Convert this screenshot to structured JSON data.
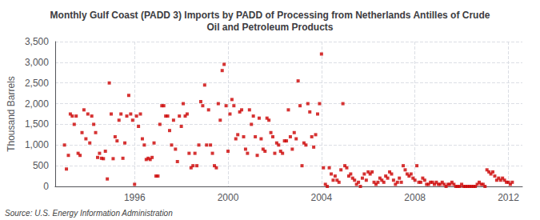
{
  "chart_data": {
    "type": "scatter",
    "title": "Monthly Gulf Coast (PADD 3) Imports by PADD of Processing from Netherlands Antilles of Crude\nOil and Petroleum Products",
    "ylabel": "Thousand Barrels",
    "annotation": "Source: U.S. Energy Information Administration",
    "color": "#cc0000",
    "marker": "square",
    "grid": true,
    "xlim": [
      1992.6,
      2012.6
    ],
    "ylim": [
      0,
      3500
    ],
    "xticks": [
      1996,
      2000,
      2004,
      2008,
      2012
    ],
    "yticks": [
      0,
      500,
      {
        "value": 1000,
        "label": "1,000"
      },
      {
        "value": 1500,
        "label": "1,500"
      },
      {
        "value": 2000,
        "label": "2,000"
      },
      {
        "value": 2500,
        "label": "2,500"
      },
      {
        "value": 3000,
        "label": "3,000"
      },
      {
        "value": 3500,
        "label": "3,500"
      }
    ],
    "x": [
      1993.0,
      1993.083,
      1993.167,
      1993.25,
      1993.333,
      1993.417,
      1993.5,
      1993.583,
      1993.667,
      1993.75,
      1993.833,
      1993.917,
      1994.0,
      1994.083,
      1994.167,
      1994.25,
      1994.333,
      1994.417,
      1994.5,
      1994.583,
      1994.667,
      1994.75,
      1994.833,
      1994.917,
      1995.0,
      1995.083,
      1995.167,
      1995.25,
      1995.333,
      1995.417,
      1995.5,
      1995.583,
      1995.667,
      1995.75,
      1995.833,
      1995.917,
      1996.0,
      1996.083,
      1996.167,
      1996.25,
      1996.333,
      1996.417,
      1996.5,
      1996.583,
      1996.667,
      1996.75,
      1996.833,
      1996.917,
      1997.0,
      1997.083,
      1997.167,
      1997.25,
      1997.333,
      1997.417,
      1997.5,
      1997.583,
      1997.667,
      1997.75,
      1997.833,
      1997.917,
      1998.0,
      1998.083,
      1998.167,
      1998.25,
      1998.333,
      1998.417,
      1998.5,
      1998.583,
      1998.667,
      1998.75,
      1998.833,
      1998.917,
      1999.0,
      1999.083,
      1999.167,
      1999.25,
      1999.333,
      1999.417,
      1999.5,
      1999.583,
      1999.667,
      1999.75,
      1999.833,
      1999.917,
      2000.0,
      2000.083,
      2000.167,
      2000.25,
      2000.333,
      2000.417,
      2000.5,
      2000.583,
      2000.667,
      2000.75,
      2000.833,
      2000.917,
      2001.0,
      2001.083,
      2001.167,
      2001.25,
      2001.333,
      2001.417,
      2001.5,
      2001.583,
      2001.667,
      2001.75,
      2001.833,
      2001.917,
      2002.0,
      2002.083,
      2002.167,
      2002.25,
      2002.333,
      2002.417,
      2002.5,
      2002.583,
      2002.667,
      2002.75,
      2002.833,
      2002.917,
      2003.0,
      2003.083,
      2003.167,
      2003.25,
      2003.333,
      2003.417,
      2003.5,
      2003.583,
      2003.667,
      2003.75,
      2003.833,
      2003.917,
      2004.0,
      2004.083,
      2004.167,
      2004.25,
      2004.333,
      2004.417,
      2004.5,
      2004.583,
      2004.667,
      2004.75,
      2004.833,
      2004.917,
      2005.0,
      2005.083,
      2005.167,
      2005.25,
      2005.333,
      2005.417,
      2005.5,
      2005.583,
      2005.667,
      2005.75,
      2005.833,
      2005.917,
      2006.0,
      2006.083,
      2006.167,
      2006.25,
      2006.333,
      2006.417,
      2006.5,
      2006.583,
      2006.667,
      2006.75,
      2006.833,
      2006.917,
      2007.0,
      2007.083,
      2007.167,
      2007.25,
      2007.333,
      2007.417,
      2007.5,
      2007.583,
      2007.667,
      2007.75,
      2007.833,
      2007.917,
      2008.0,
      2008.083,
      2008.167,
      2008.25,
      2008.333,
      2008.417,
      2008.5,
      2008.583,
      2008.667,
      2008.75,
      2008.833,
      2008.917,
      2009.0,
      2009.083,
      2009.167,
      2009.25,
      2009.333,
      2009.417,
      2009.5,
      2009.583,
      2009.667,
      2009.75,
      2009.833,
      2009.917,
      2010.0,
      2010.083,
      2010.167,
      2010.25,
      2010.333,
      2010.417,
      2010.5,
      2010.583,
      2010.667,
      2010.75,
      2010.833,
      2010.917,
      2011.0,
      2011.083,
      2011.167,
      2011.25,
      2011.333,
      2011.417,
      2011.5,
      2011.583,
      2011.667,
      2011.75,
      2011.833,
      2011.917,
      2012.0,
      2012.083,
      2012.167
    ],
    "values": [
      1000,
      420,
      750,
      1750,
      1700,
      1500,
      1700,
      800,
      750,
      1300,
      1850,
      1150,
      1750,
      1050,
      1700,
      1500,
      1300,
      700,
      800,
      680,
      670,
      850,
      180,
      2500,
      1750,
      670,
      1200,
      1100,
      1600,
      1750,
      680,
      1050,
      1700,
      2200,
      1750,
      1600,
      50,
      1700,
      1450,
      1750,
      1150,
      1000,
      650,
      680,
      650,
      700,
      1050,
      250,
      250,
      1500,
      1950,
      1950,
      1700,
      1700,
      1350,
      1000,
      1600,
      900,
      600,
      1700,
      1450,
      2000,
      1700,
      1750,
      800,
      450,
      500,
      800,
      500,
      1000,
      2050,
      1950,
      2450,
      1000,
      1850,
      1000,
      800,
      500,
      450,
      2000,
      1600,
      2800,
      2950,
      1950,
      850,
      1750,
      2100,
      1950,
      1150,
      1250,
      1800,
      1850,
      1200,
      900,
      800,
      1850,
      1500,
      1700,
      1200,
      750,
      1650,
      1150,
      900,
      850,
      1650,
      1600,
      1300,
      1200,
      800,
      1050,
      1000,
      850,
      800,
      1100,
      1100,
      1850,
      1200,
      900,
      1300,
      1150,
      2550,
      1950,
      500,
      1050,
      1000,
      2000,
      1800,
      1200,
      950,
      1250,
      1750,
      2000,
      3200,
      450,
      50,
      0,
      450,
      300,
      150,
      250,
      150,
      100,
      400,
      2000,
      500,
      450,
      250,
      300,
      200,
      150,
      50,
      100,
      0,
      200,
      300,
      150,
      350,
      300,
      350,
      100,
      50,
      100,
      200,
      150,
      100,
      250,
      200,
      350,
      300,
      150,
      50,
      100,
      200,
      100,
      500,
      400,
      300,
      250,
      300,
      200,
      150,
      500,
      100,
      100,
      200,
      150,
      50,
      50,
      100,
      100,
      50,
      100,
      50,
      50,
      100,
      50,
      0,
      50,
      50,
      100,
      50,
      0,
      0,
      0,
      50,
      0,
      0,
      0,
      0,
      0,
      0,
      0,
      50,
      100,
      50,
      50,
      0,
      400,
      350,
      300,
      350,
      250,
      150,
      200,
      150,
      200,
      150,
      100,
      100,
      50,
      100
    ]
  }
}
